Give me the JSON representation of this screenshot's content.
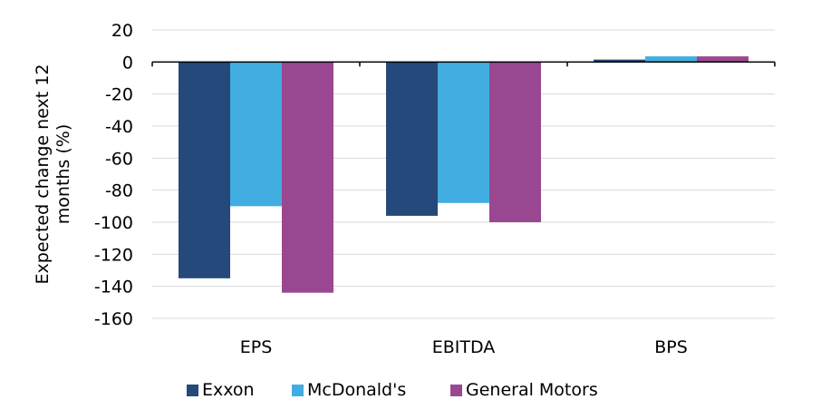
{
  "chart_data": {
    "type": "bar",
    "categories": [
      "EPS",
      "EBITDA",
      "BPS"
    ],
    "series": [
      {
        "name": "Exxon",
        "values": [
          -135,
          -96,
          1.5
        ],
        "color": "#24497a"
      },
      {
        "name": "McDonald's",
        "values": [
          -90,
          -88,
          3.5
        ],
        "color": "#41ade1"
      },
      {
        "name": "General Motors",
        "values": [
          -144,
          -100,
          3.5
        ],
        "color": "#9a4791"
      }
    ],
    "title": "",
    "xlabel": "",
    "ylabel": "Expected change next 12 months (%)",
    "ylabel_lines": [
      "Expected change next 12",
      "months (%)"
    ],
    "ylim": [
      -160,
      20
    ],
    "yticks": [
      20,
      0,
      -20,
      -40,
      -60,
      -80,
      -100,
      -120,
      -140,
      -160
    ],
    "grid": true,
    "legend_position": "bottom"
  }
}
